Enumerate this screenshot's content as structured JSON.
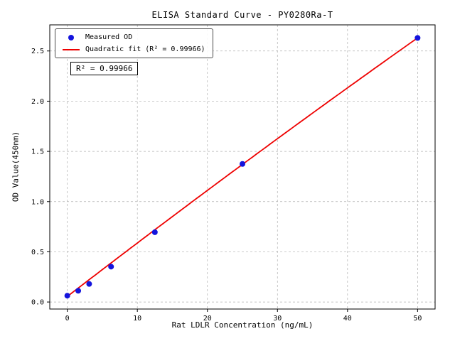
{
  "chart_data": {
    "type": "scatter",
    "title": "ELISA Standard Curve - PY0280Ra-T",
    "xlabel": "Rat LDLR Concentration (ng/mL)",
    "ylabel": "OD Value(450nm)",
    "x": [
      0,
      1.5625,
      3.125,
      6.25,
      12.5,
      25,
      50
    ],
    "y": [
      0.063,
      0.112,
      0.18,
      0.352,
      0.695,
      1.375,
      2.63
    ],
    "fit": {
      "kind": "quadratic",
      "coeffs": {
        "a": 0.055,
        "b": 0.0537,
        "c": -4.4e-05
      },
      "r_squared": "0.99966",
      "x_range": [
        0,
        50
      ]
    },
    "annotation": "R² = 0.99966",
    "legend": [
      {
        "label": "Measured OD",
        "marker": "dot"
      },
      {
        "label": "Quadratic fit (R² = 0.99966)",
        "marker": "line"
      }
    ],
    "legend_position": "upper left",
    "xlim": [
      -2.5,
      52.5
    ],
    "ylim": [
      -0.07,
      2.76
    ],
    "xticks": [
      0,
      10,
      20,
      30,
      40,
      50
    ],
    "xtick_labels": [
      "0",
      "10",
      "20",
      "30",
      "40",
      "50"
    ],
    "yticks": [
      0,
      0.5,
      1,
      1.5,
      2,
      2.5
    ],
    "ytick_labels": [
      "0.0",
      "0.5",
      "1.0",
      "1.5",
      "2.0",
      "2.5"
    ],
    "grid": true,
    "colors": {
      "points": "#1414dd",
      "fit_line": "#ee0000",
      "grid": "#b0b0b0",
      "axis": "#000000"
    }
  }
}
